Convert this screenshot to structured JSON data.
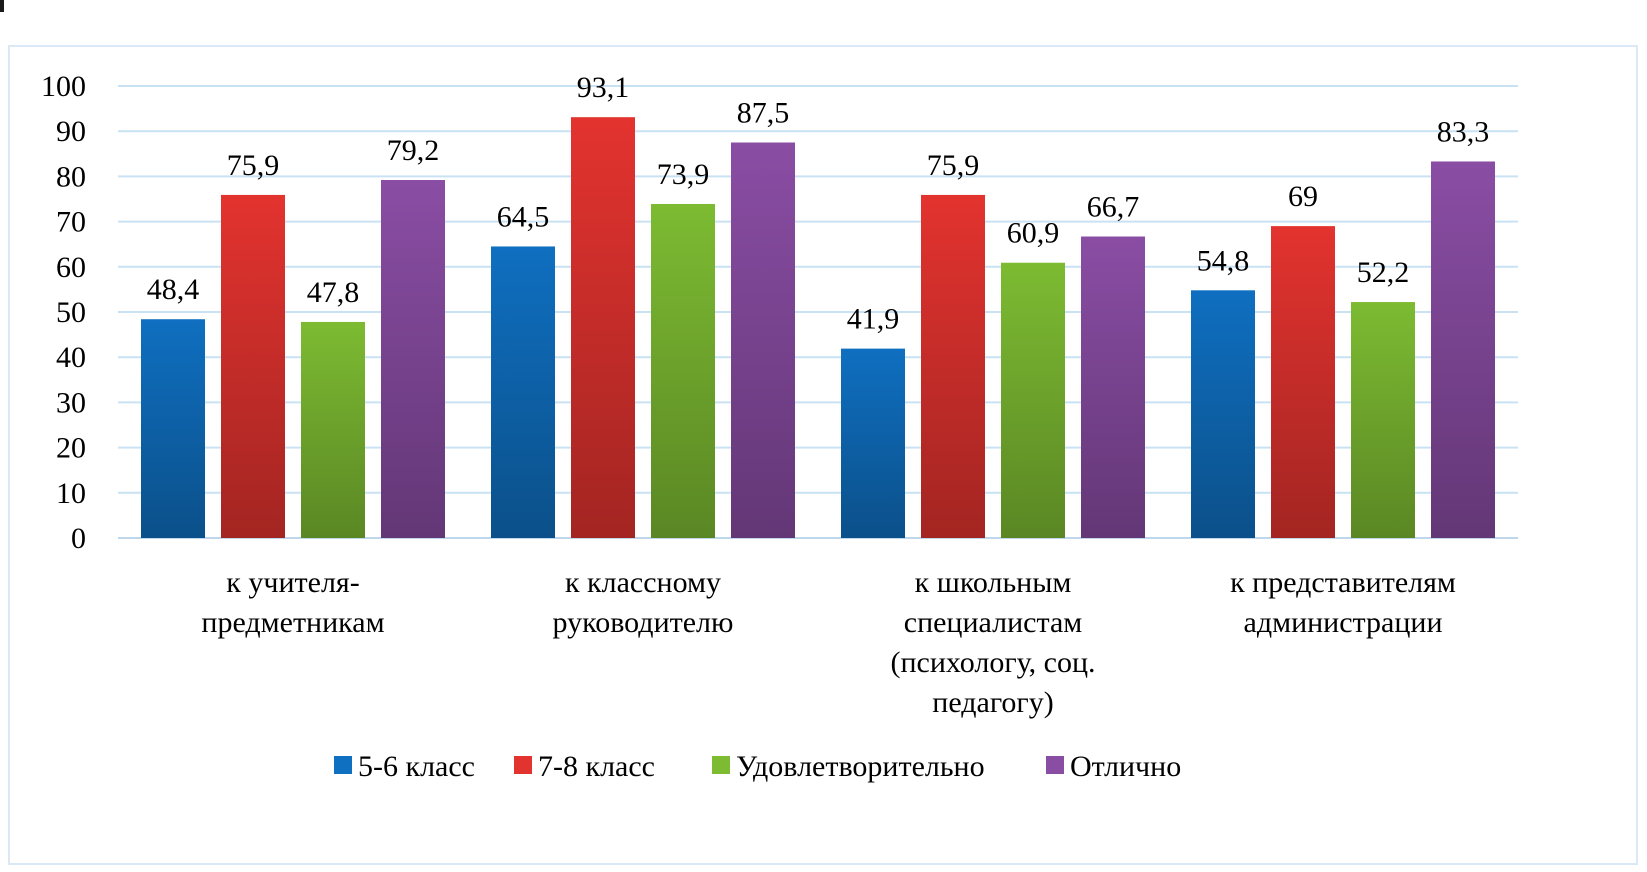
{
  "chart_data": {
    "type": "bar",
    "categories": [
      [
        "к учителя-",
        "предметникам"
      ],
      [
        "к классному",
        "руководителю"
      ],
      [
        "к школьным",
        "специалистам",
        "(психологу, соц.",
        "педагогу)"
      ],
      [
        "к представителям",
        "администрации"
      ]
    ],
    "series": [
      {
        "name": "5-6 класс",
        "values": [
          48.4,
          64.5,
          41.9,
          54.8
        ],
        "labels": [
          "48,4",
          "64,5",
          "41,9",
          "54,8"
        ],
        "color": "#0f6fc0"
      },
      {
        "name": "7-8 класс",
        "values": [
          75.9,
          93.1,
          75.9,
          69
        ],
        "labels": [
          "75,9",
          "93,1",
          "75,9",
          "69"
        ],
        "color": "#e3332f"
      },
      {
        "name": "Удовлетворительно",
        "values": [
          47.8,
          73.9,
          60.9,
          52.2
        ],
        "labels": [
          "47,8",
          "73,9",
          "60,9",
          "52,2"
        ],
        "color": "#7dbb32"
      },
      {
        "name": "Отлично",
        "values": [
          79.2,
          87.5,
          66.7,
          83.3
        ],
        "labels": [
          "79,2",
          "87,5",
          "66,7",
          "83,3"
        ],
        "color": "#8a4da4"
      }
    ],
    "yticks": [
      "0",
      "10",
      "20",
      "30",
      "40",
      "50",
      "60",
      "70",
      "80",
      "90",
      "100"
    ],
    "ylim": [
      0,
      100
    ],
    "title": "",
    "xlabel": "",
    "ylabel": "",
    "grid": true,
    "legend": "bottom"
  },
  "colors": {
    "grid": "#c9e2f3",
    "axis": "#bfd7ea",
    "frame": "#dbe9f6"
  }
}
